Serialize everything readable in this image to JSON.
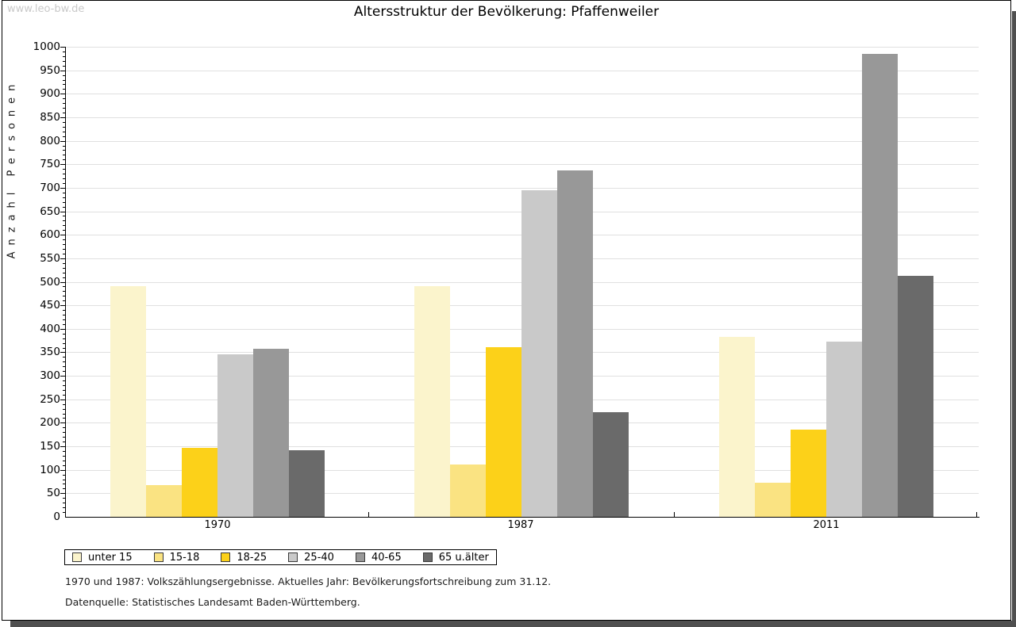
{
  "watermark": "www.leo-bw.de",
  "footnotes": [
    "1970 und 1987: Volkszählungsergebnisse. Aktuelles Jahr: Bevölkerungsfortschreibung zum 31.12.",
    "Datenquelle: Statistisches Landesamt Baden-Württemberg."
  ],
  "chart_data": {
    "type": "bar",
    "title": "Altersstruktur der Bevölkerung: Pfaffenweiler",
    "xlabel": "",
    "ylabel": "Anzahl Personen",
    "ylim": [
      0,
      1000
    ],
    "ytick_step": 50,
    "minor_tick_step": 10,
    "grid": true,
    "legend_position": "bottom",
    "categories": [
      "1970",
      "1987",
      "2011"
    ],
    "series": [
      {
        "name": "unter 15",
        "color": "#FBF4CC",
        "values": [
          490,
          490,
          383
        ]
      },
      {
        "name": "15-18",
        "color": "#FAE382",
        "values": [
          68,
          111,
          73
        ]
      },
      {
        "name": "18-25",
        "color": "#FCD119",
        "values": [
          146,
          361,
          186
        ]
      },
      {
        "name": "25-40",
        "color": "#C9C9C9",
        "values": [
          345,
          695,
          373
        ]
      },
      {
        "name": "40-65",
        "color": "#989898",
        "values": [
          357,
          737,
          985
        ]
      },
      {
        "name": "65 u.älter",
        "color": "#6A6A6A",
        "values": [
          142,
          223,
          512
        ]
      }
    ]
  }
}
